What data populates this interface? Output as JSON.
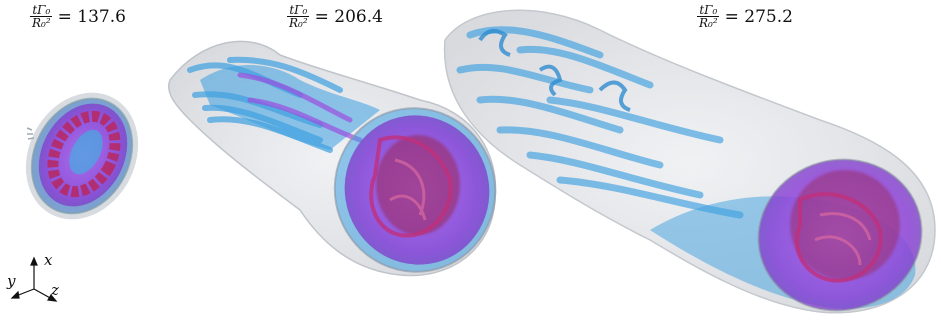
{
  "panels": [
    {
      "time_numerator": "tΓ₀",
      "time_denominator": "R₀²",
      "value": "= 137.6"
    },
    {
      "time_numerator": "tΓ₀",
      "time_denominator": "R₀²",
      "value": "= 206.4"
    },
    {
      "time_numerator": "tΓ₀",
      "time_denominator": "R₀²",
      "value": "= 275.2"
    }
  ],
  "axes": {
    "x": "x",
    "y": "y",
    "z": "z"
  },
  "colors": {
    "outer_shell": "#c8ccd2",
    "blue_tubes": "#3d9fe0",
    "purple_core": "#9b4fe0",
    "magenta_core": "#c0307a"
  }
}
